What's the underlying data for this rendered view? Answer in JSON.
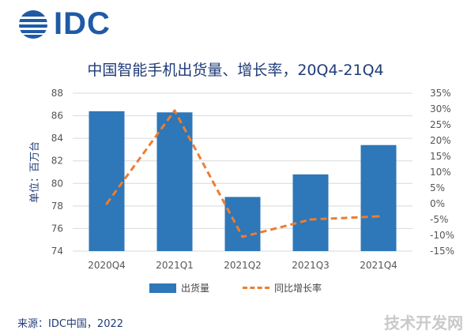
{
  "brand": {
    "logo_text": "IDC",
    "colors": {
      "brand": "#1f5aa6",
      "bar": "#2e77b8",
      "line": "#ed7d31"
    }
  },
  "chart_data": {
    "type": "bar",
    "title": "中国智能手机出货量、增长率，20Q4-21Q4",
    "ylabel": "单位：百万台",
    "categories": [
      "2020Q4",
      "2021Q1",
      "2021Q2",
      "2021Q3",
      "2021Q4"
    ],
    "ylim": [
      74,
      88
    ],
    "yticks": [
      "74",
      "76",
      "78",
      "80",
      "82",
      "84",
      "86",
      "88"
    ],
    "y2lim": [
      -15,
      35
    ],
    "y2ticks": [
      "-15%",
      "-10%",
      "-5%",
      "0%",
      "5%",
      "10%",
      "15%",
      "20%",
      "25%",
      "30%",
      "35%"
    ],
    "series": [
      {
        "name": "出货量",
        "kind": "bar",
        "values": [
          86.4,
          86.3,
          78.8,
          80.8,
          83.4
        ]
      },
      {
        "name": "同比增长率",
        "kind": "line",
        "axis": "secondary",
        "style": "dashed",
        "values": [
          0,
          29.5,
          -10.5,
          -5,
          -4
        ]
      }
    ],
    "grid": true,
    "legend": "bottom-center"
  },
  "footer": {
    "source": "来源：IDC中国，2022",
    "watermark": "技术开发网"
  }
}
